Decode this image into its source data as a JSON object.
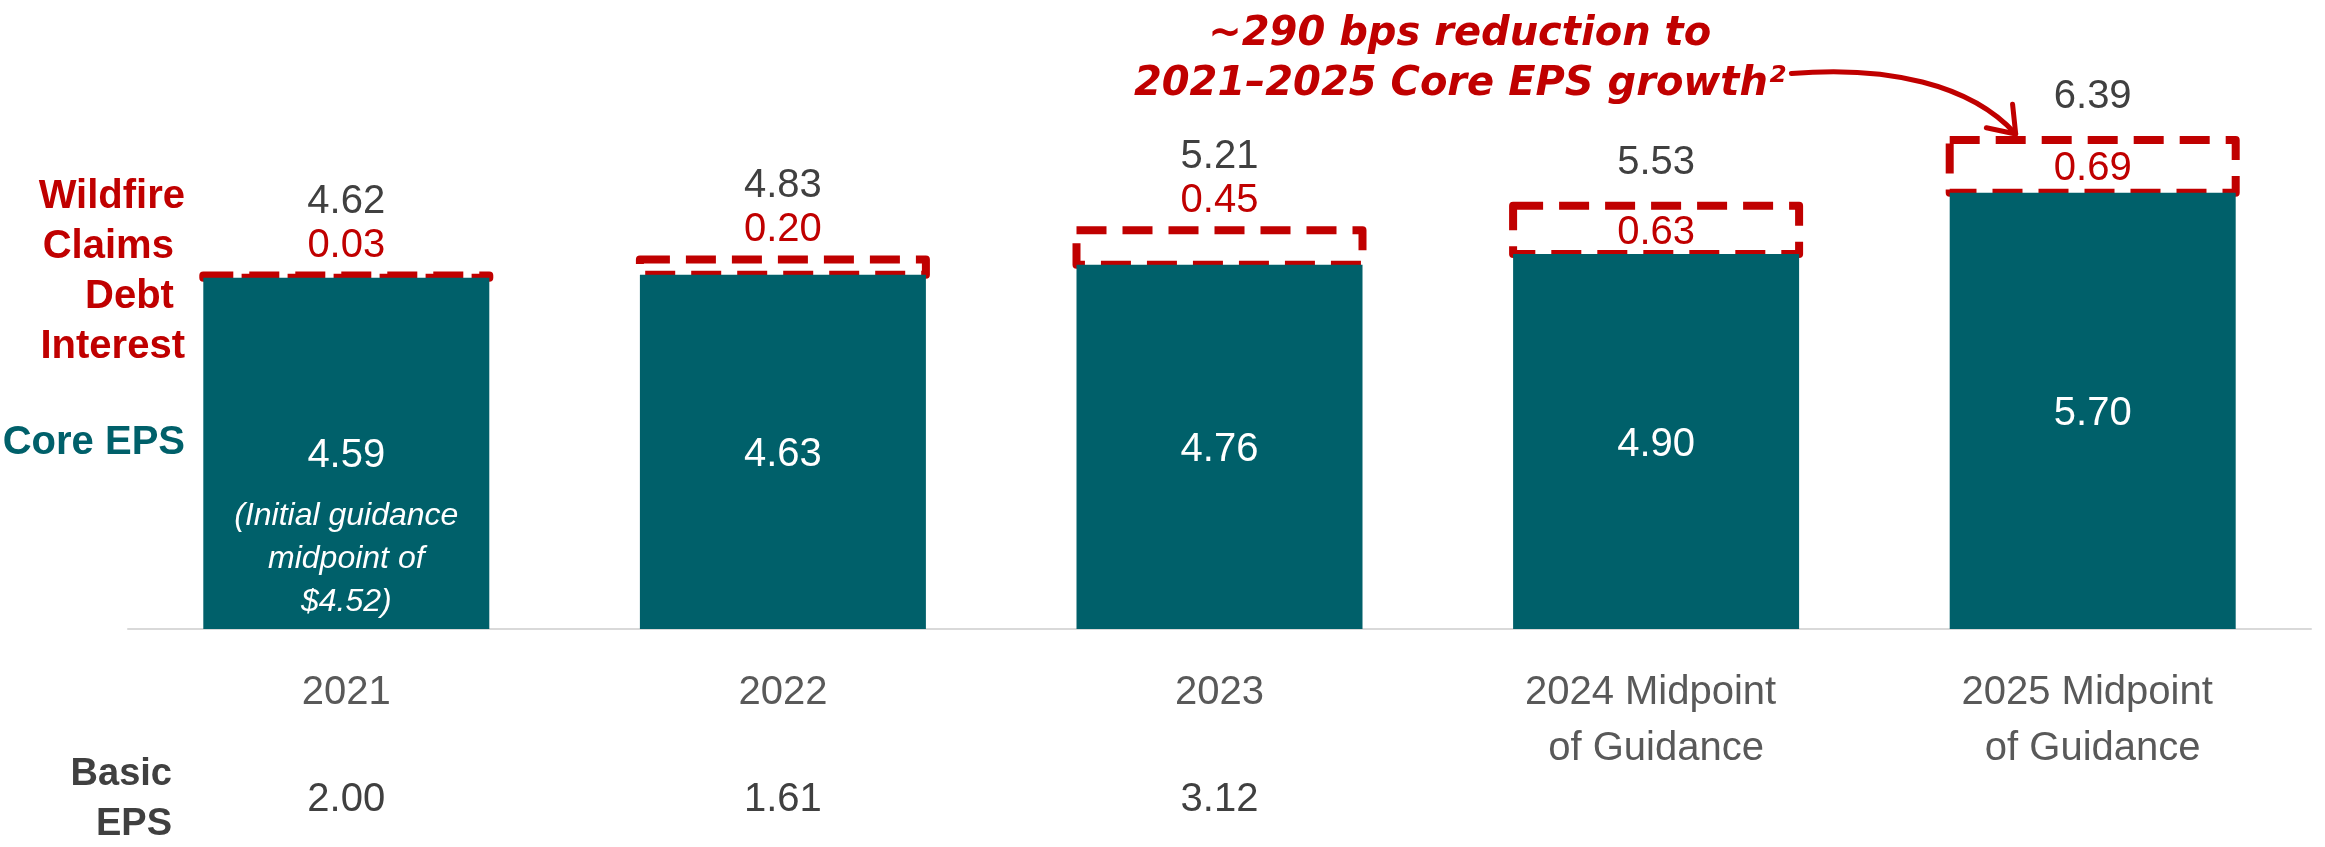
{
  "chart_data": {
    "type": "bar",
    "stacked": true,
    "categories": [
      "2021",
      "2022",
      "2023",
      "2024 Midpoint of Guidance",
      "2025 Midpoint of Guidance"
    ],
    "series": [
      {
        "name": "Core EPS",
        "color": "#00606a",
        "values": [
          4.59,
          4.63,
          4.76,
          4.9,
          5.7
        ],
        "value_labels": [
          "4.59",
          "4.63",
          "4.76",
          "4.90",
          "5.70"
        ]
      },
      {
        "name": "Wildfire Claims Debt Interest",
        "color": "#c00000",
        "line_style": "dashed",
        "values": [
          0.03,
          0.2,
          0.45,
          0.63,
          0.69
        ],
        "value_labels": [
          "0.03",
          "0.20",
          "0.45",
          "0.63",
          "0.69"
        ]
      }
    ],
    "totals": [
      "4.62",
      "4.83",
      "5.21",
      "5.53",
      "6.39"
    ],
    "legend": "left",
    "annotations": [
      "~290 bps reduction to\n2021–2025 Core EPS growth²",
      "(Initial guidance midpoint of $4.52)",
      "Basic EPS",
      "2.00",
      "1.61",
      "3.12"
    ]
  }
}
